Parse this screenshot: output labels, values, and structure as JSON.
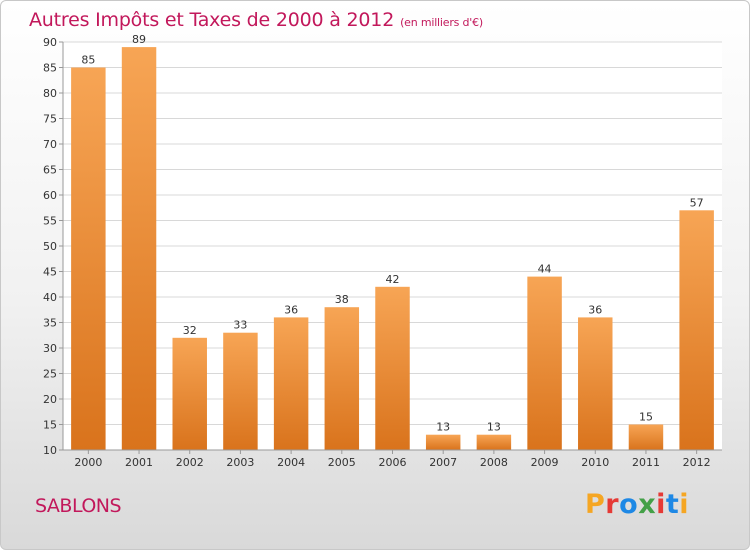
{
  "title": {
    "main": "Autres Impôts et Taxes de 2000 à 2012",
    "unit": "(en milliers d'€)"
  },
  "commune": "SABLONS",
  "logo_text": "Proxiti",
  "logo_colors": [
    "#f5a623",
    "#e53935",
    "#1e88e5",
    "#43a047",
    "#e53935",
    "#1e88e5",
    "#f5a623"
  ],
  "colors": {
    "bar_light": "#f7a555",
    "bar_dark": "#d9731c",
    "title": "#c2185b",
    "grid": "#d8d8d8"
  },
  "chart_data": {
    "type": "bar",
    "title": "Autres Impôts et Taxes de 2000 à 2012",
    "subtitle": "(en milliers d'€)",
    "categories": [
      "2000",
      "2001",
      "2002",
      "2003",
      "2004",
      "2005",
      "2006",
      "2007",
      "2008",
      "2009",
      "2010",
      "2011",
      "2012"
    ],
    "values": [
      85,
      89,
      32,
      33,
      36,
      38,
      42,
      13,
      13,
      44,
      36,
      15,
      57
    ],
    "ylim": [
      10,
      90
    ],
    "yticks": [
      10,
      15,
      20,
      25,
      30,
      35,
      40,
      45,
      50,
      55,
      60,
      65,
      70,
      75,
      80,
      85,
      90
    ],
    "grid": true,
    "xlabel": "",
    "ylabel": ""
  }
}
